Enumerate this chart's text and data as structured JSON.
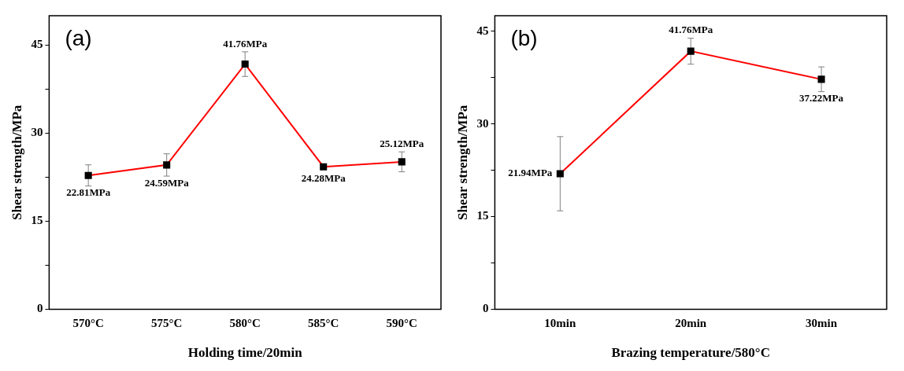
{
  "chart_data": [
    {
      "type": "line",
      "xlabel": "Holding time/20min",
      "ylabel": "Shear strength/MPa",
      "annotations": [
        "(a)"
      ],
      "categories": [
        "570°C",
        "575°C",
        "580°C",
        "585°C",
        "590°C"
      ],
      "series": [
        {
          "color": "#ff0000",
          "colors": [
            "#000000",
            "#000000",
            "#000000",
            "#000000",
            "#000000"
          ],
          "values": [
            22.81,
            24.59,
            41.76,
            24.28,
            25.12
          ],
          "errors": [
            1.8,
            1.9,
            2.1,
            null,
            1.7
          ],
          "value_labels": [
            "22.81MPa",
            "24.59MPa",
            "41.76MPa",
            "24.28MPa",
            "25.12MPa"
          ]
        }
      ],
      "ylim": [
        0,
        50
      ],
      "yticks": [
        0,
        {
          "value": 7.5,
          "label": null
        },
        15,
        {
          "value": 22.5,
          "label": null
        },
        30,
        {
          "value": 37.5,
          "label": null
        },
        45
      ],
      "marker": "square",
      "line_style": "solid"
    },
    {
      "type": "line",
      "xlabel": "Brazing temperature/580°C",
      "ylabel": "Shear strength/MPa",
      "annotations": [
        "(b)"
      ],
      "categories": [
        "10min",
        "20min",
        "30min"
      ],
      "series": [
        {
          "color": "#ff0000",
          "colors": [
            "#000000",
            "#000000",
            "#000000"
          ],
          "values": [
            21.94,
            41.76,
            37.22
          ],
          "errors": [
            6,
            2.1,
            2.0
          ],
          "value_labels": [
            "21.94MPa",
            "41.76MPa",
            "37.22MPa"
          ]
        }
      ],
      "ylim": [
        0,
        47.5
      ],
      "yticks": [
        0,
        {
          "value": 7.5,
          "label": null
        },
        15,
        {
          "value": 22.5,
          "label": null
        },
        30,
        {
          "value": 37.5,
          "label": null
        },
        45
      ],
      "marker": "square",
      "line_style": "solid"
    }
  ]
}
